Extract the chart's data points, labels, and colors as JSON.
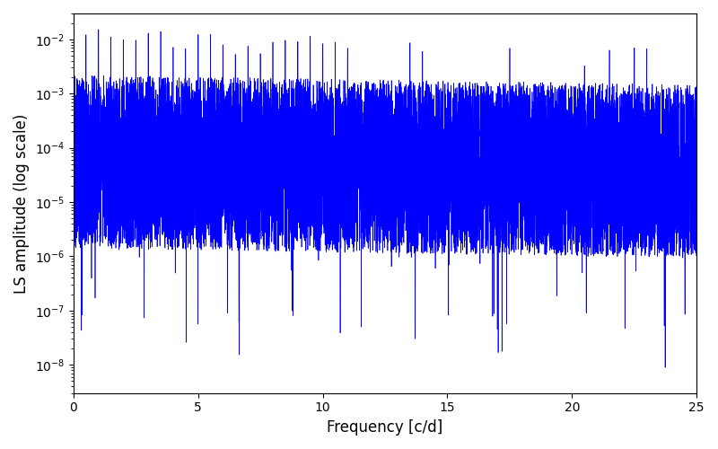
{
  "title": "",
  "xlabel": "Frequency [c/d]",
  "ylabel": "LS amplitude (log scale)",
  "xlim": [
    0,
    25
  ],
  "ylim": [
    3e-09,
    0.03
  ],
  "line_color": "#0000ff",
  "line_width": 0.5,
  "yscale": "log",
  "figsize": [
    8.0,
    5.0
  ],
  "dpi": 100,
  "n_points": 10000,
  "freq_max": 25.0,
  "seed": 7,
  "background_color": "#ffffff"
}
